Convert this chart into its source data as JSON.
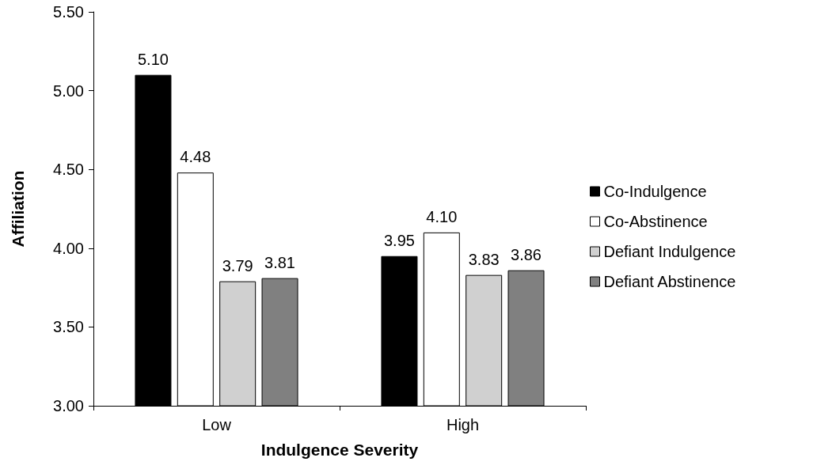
{
  "chart_data": {
    "type": "bar",
    "xlabel": "Indulgence Severity",
    "ylabel": "Affiliation",
    "categories": [
      "Low",
      "High"
    ],
    "series": [
      {
        "name": "Co-Indulgence",
        "color": "#000000",
        "values": [
          5.1,
          3.95
        ],
        "value_labels": [
          "5.10",
          "3.95"
        ]
      },
      {
        "name": "Co-Abstinence",
        "color": "#ffffff",
        "values": [
          4.48,
          4.1
        ],
        "value_labels": [
          "4.48",
          "4.10"
        ]
      },
      {
        "name": "Defiant Indulgence",
        "color": "#d0d0d0",
        "values": [
          3.79,
          3.83
        ],
        "value_labels": [
          "3.79",
          "3.83"
        ]
      },
      {
        "name": "Defiant Abstinence",
        "color": "#808080",
        "values": [
          3.81,
          3.86
        ],
        "value_labels": [
          "3.81",
          "3.86"
        ]
      }
    ],
    "ylim": [
      3.0,
      5.5
    ],
    "yticks": [
      {
        "value": 3.0,
        "label": "3.00"
      },
      {
        "value": 3.5,
        "label": "3.50"
      },
      {
        "value": 4.0,
        "label": "4.00"
      },
      {
        "value": 4.5,
        "label": "4.50"
      },
      {
        "value": 5.0,
        "label": "5.00"
      },
      {
        "value": 5.5,
        "label": "5.50"
      }
    ],
    "grid": false,
    "legend": "right"
  }
}
